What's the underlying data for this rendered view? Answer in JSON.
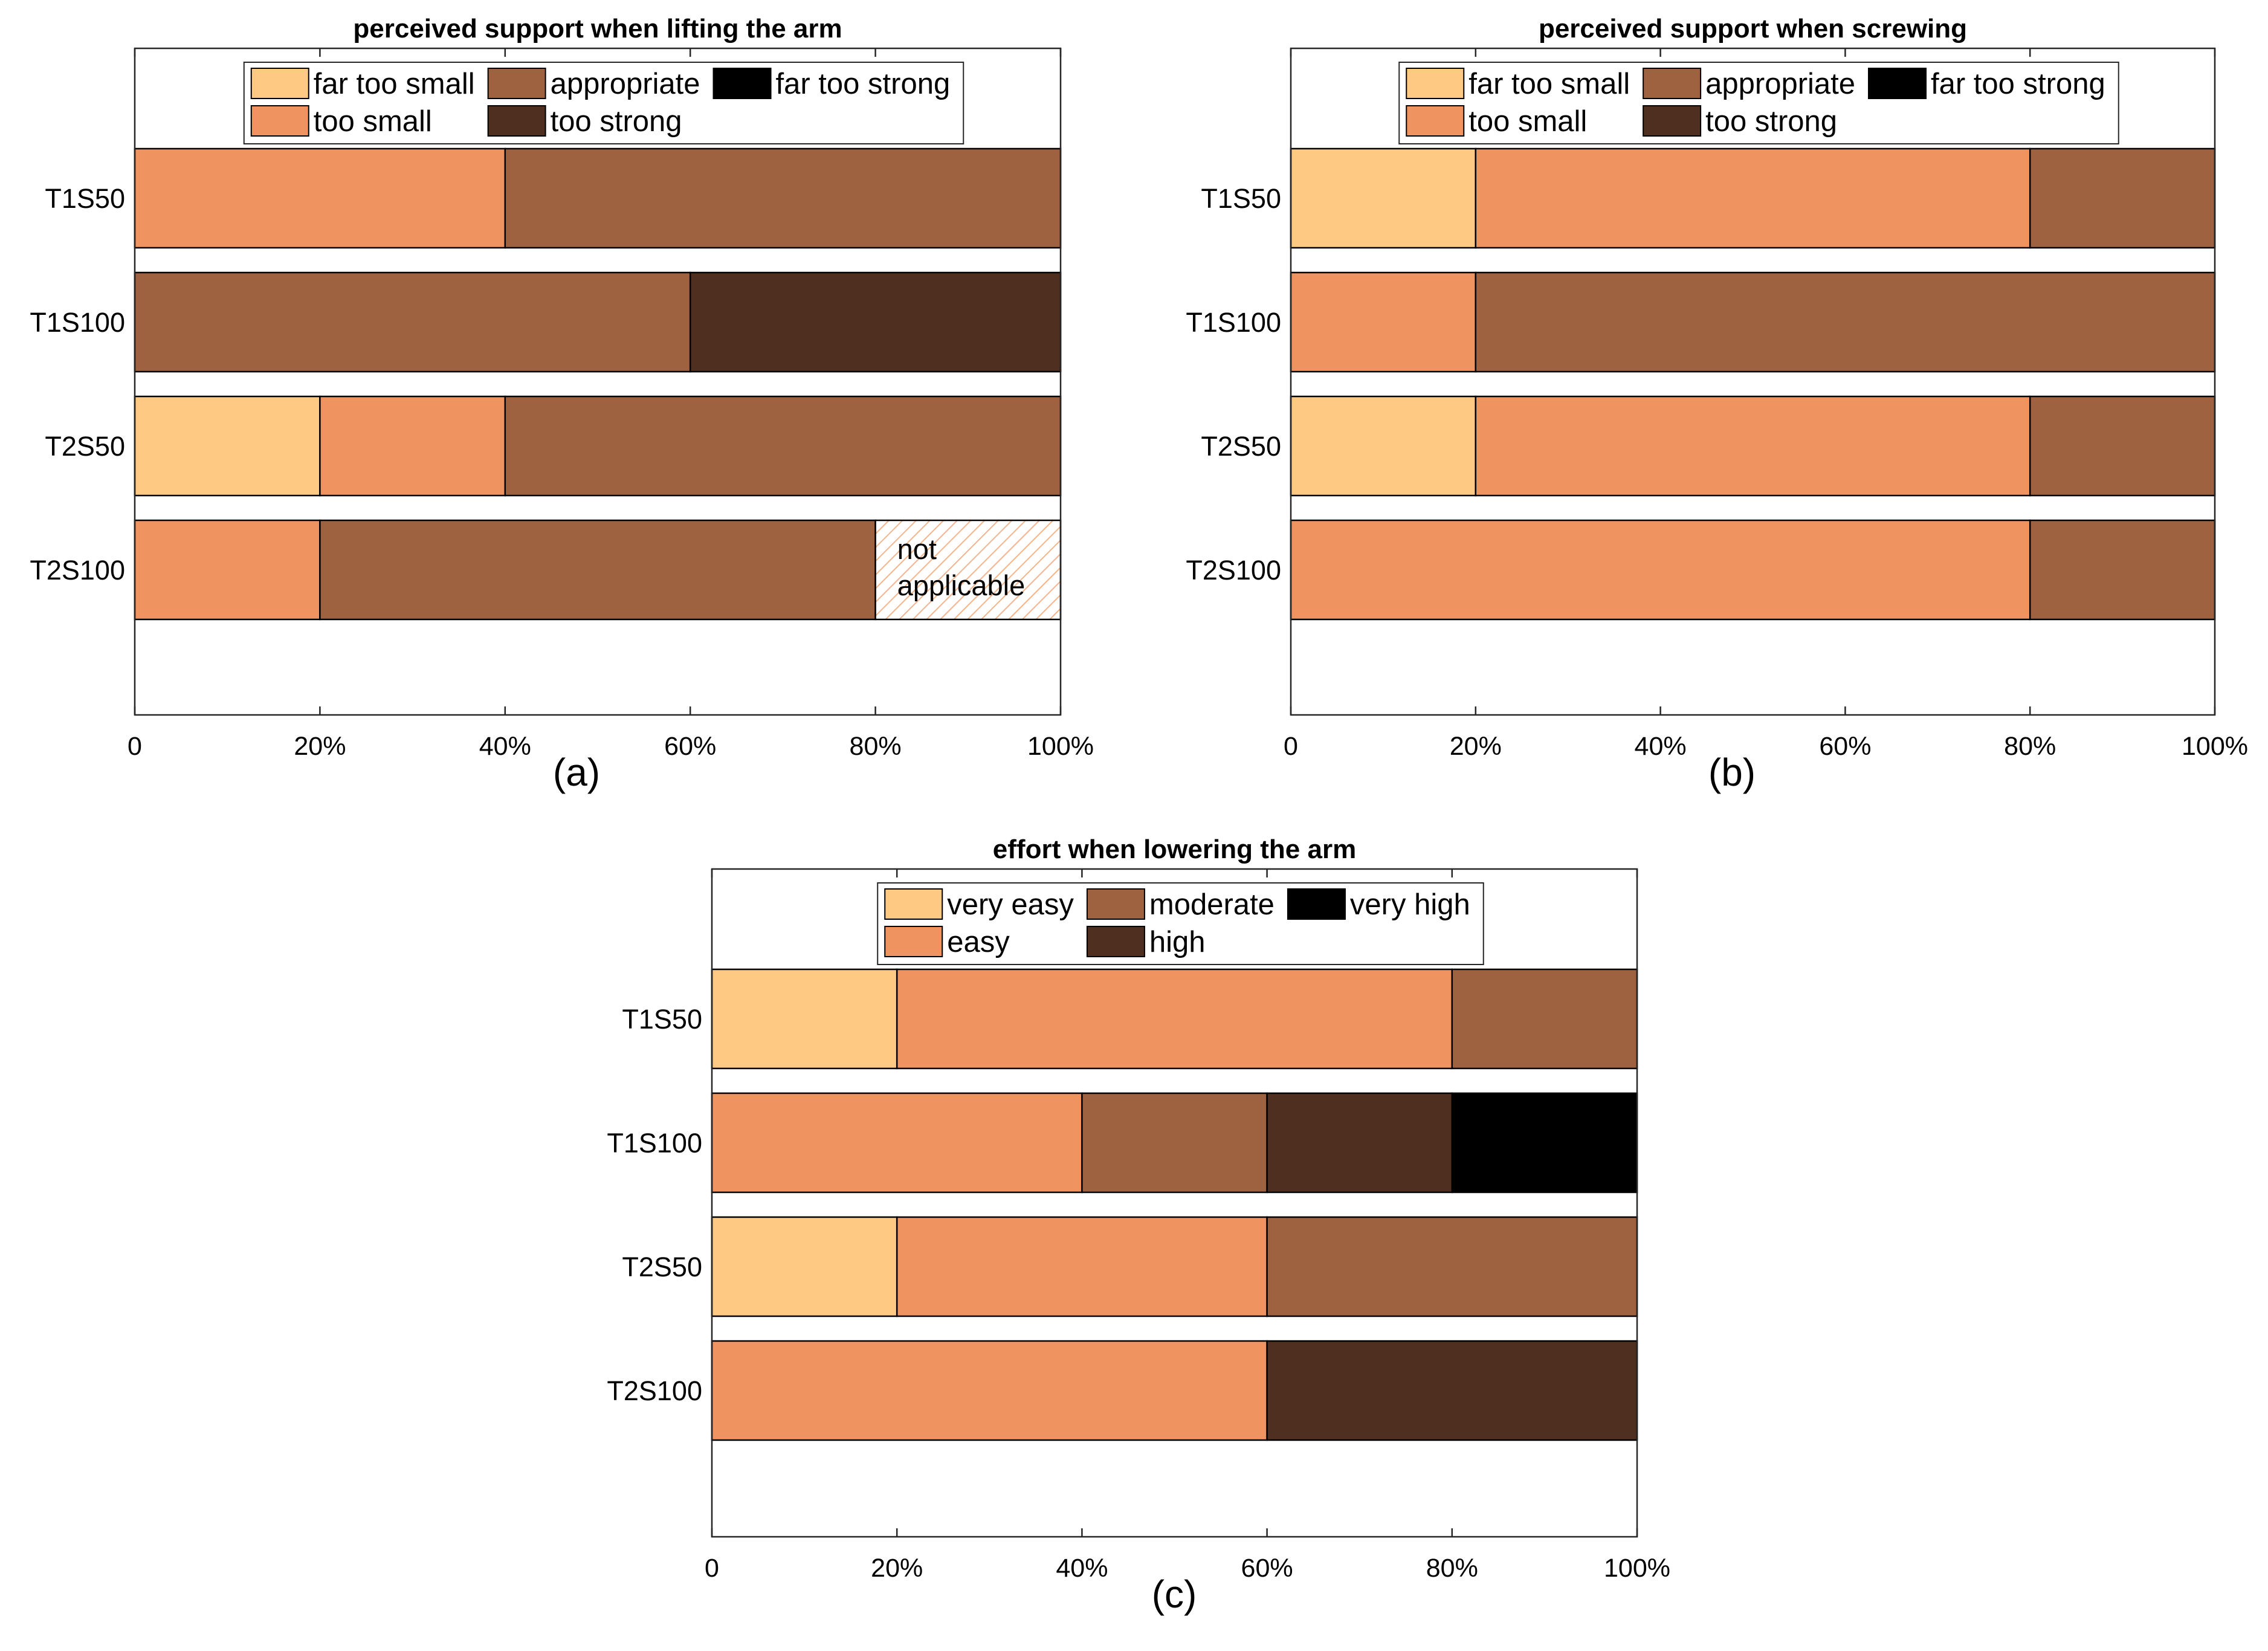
{
  "panels": [
    {
      "panel_label": "(a)",
      "chart_data": {
        "type": "bar",
        "orientation": "horizontal",
        "stacked": true,
        "percent": true,
        "title": "perceived support when lifting the arm",
        "xlabel": "",
        "ylabel": "",
        "xlim": [
          0,
          100
        ],
        "x_ticks": [
          "0",
          "20%",
          "40%",
          "60%",
          "80%",
          "100%"
        ],
        "legend_placement": "top-center",
        "categories": [
          "T1S50",
          "T1S100",
          "T2S50",
          "T2S100"
        ],
        "series": [
          {
            "name": "far too small",
            "color": "#FEC982",
            "values": [
              0,
              0,
              20,
              0
            ]
          },
          {
            "name": "too small",
            "color": "#EF9461",
            "values": [
              40,
              0,
              20,
              20
            ]
          },
          {
            "name": "appropriate",
            "color": "#9F6240",
            "values": [
              60,
              60,
              60,
              60
            ]
          },
          {
            "name": "too strong",
            "color": "#4F3020",
            "values": [
              0,
              40,
              0,
              0
            ]
          },
          {
            "name": "far too strong",
            "color": "#000000",
            "values": [
              0,
              0,
              0,
              0
            ]
          }
        ],
        "annotations": [
          {
            "category": "T2S100",
            "from": 80,
            "to": 100,
            "text": [
              "not",
              "applicable"
            ],
            "style": "hatched"
          }
        ]
      }
    },
    {
      "panel_label": "(b)",
      "chart_data": {
        "type": "bar",
        "orientation": "horizontal",
        "stacked": true,
        "percent": true,
        "title": "perceived support when screwing",
        "xlabel": "",
        "ylabel": "",
        "xlim": [
          0,
          100
        ],
        "x_ticks": [
          "0",
          "20%",
          "40%",
          "60%",
          "80%",
          "100%"
        ],
        "legend_placement": "top-center",
        "categories": [
          "T1S50",
          "T1S100",
          "T2S50",
          "T2S100"
        ],
        "series": [
          {
            "name": "far too small",
            "color": "#FEC982",
            "values": [
              20,
              0,
              20,
              0
            ]
          },
          {
            "name": "too small",
            "color": "#EF9461",
            "values": [
              60,
              20,
              60,
              80
            ]
          },
          {
            "name": "appropriate",
            "color": "#9F6240",
            "values": [
              20,
              80,
              20,
              20
            ]
          },
          {
            "name": "too strong",
            "color": "#4F3020",
            "values": [
              0,
              0,
              0,
              0
            ]
          },
          {
            "name": "far too strong",
            "color": "#000000",
            "values": [
              0,
              0,
              0,
              0
            ]
          }
        ],
        "annotations": []
      }
    },
    {
      "panel_label": "(c)",
      "chart_data": {
        "type": "bar",
        "orientation": "horizontal",
        "stacked": true,
        "percent": true,
        "title": "effort when lowering the arm",
        "xlabel": "",
        "ylabel": "",
        "xlim": [
          0,
          100
        ],
        "x_ticks": [
          "0",
          "20%",
          "40%",
          "60%",
          "80%",
          "100%"
        ],
        "legend_placement": "top-center",
        "categories": [
          "T1S50",
          "T1S100",
          "T2S50",
          "T2S100"
        ],
        "series": [
          {
            "name": "very easy",
            "color": "#FEC982",
            "values": [
              20,
              0,
              20,
              0
            ]
          },
          {
            "name": "easy",
            "color": "#EF9461",
            "values": [
              60,
              40,
              40,
              60
            ]
          },
          {
            "name": "moderate",
            "color": "#9F6240",
            "values": [
              20,
              20,
              40,
              0
            ]
          },
          {
            "name": "high",
            "color": "#4F3020",
            "values": [
              0,
              20,
              0,
              40
            ]
          },
          {
            "name": "very high",
            "color": "#000000",
            "values": [
              0,
              20,
              0,
              0
            ]
          }
        ],
        "annotations": []
      }
    }
  ]
}
